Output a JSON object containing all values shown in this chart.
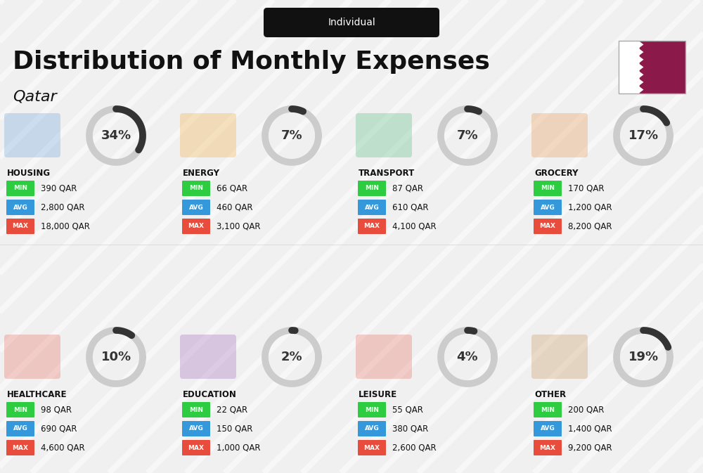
{
  "title": "Distribution of Monthly Expenses",
  "subtitle": "Individual",
  "country": "Qatar",
  "bg_color": "#f0f0f0",
  "categories": [
    {
      "name": "HOUSING",
      "pct": 34,
      "min_val": "390 QAR",
      "avg_val": "2,800 QAR",
      "max_val": "18,000 QAR",
      "row": 0,
      "col": 0
    },
    {
      "name": "ENERGY",
      "pct": 7,
      "min_val": "66 QAR",
      "avg_val": "460 QAR",
      "max_val": "3,100 QAR",
      "row": 0,
      "col": 1
    },
    {
      "name": "TRANSPORT",
      "pct": 7,
      "min_val": "87 QAR",
      "avg_val": "610 QAR",
      "max_val": "4,100 QAR",
      "row": 0,
      "col": 2
    },
    {
      "name": "GROCERY",
      "pct": 17,
      "min_val": "170 QAR",
      "avg_val": "1,200 QAR",
      "max_val": "8,200 QAR",
      "row": 0,
      "col": 3
    },
    {
      "name": "HEALTHCARE",
      "pct": 10,
      "min_val": "98 QAR",
      "avg_val": "690 QAR",
      "max_val": "4,600 QAR",
      "row": 1,
      "col": 0
    },
    {
      "name": "EDUCATION",
      "pct": 2,
      "min_val": "22 QAR",
      "avg_val": "150 QAR",
      "max_val": "1,000 QAR",
      "row": 1,
      "col": 1
    },
    {
      "name": "LEISURE",
      "pct": 4,
      "min_val": "55 QAR",
      "avg_val": "380 QAR",
      "max_val": "2,600 QAR",
      "row": 1,
      "col": 2
    },
    {
      "name": "OTHER",
      "pct": 19,
      "min_val": "200 QAR",
      "avg_val": "1,400 QAR",
      "max_val": "9,200 QAR",
      "row": 1,
      "col": 3
    }
  ],
  "min_color": "#2ecc40",
  "avg_color": "#3498db",
  "max_color": "#e74c3c",
  "label_color": "#ffffff",
  "arc_color_active": "#333333",
  "arc_color_bg": "#cccccc",
  "title_color": "#111111",
  "subtitle_bg": "#111111",
  "subtitle_color": "#ffffff",
  "cat_name_color": "#111111"
}
